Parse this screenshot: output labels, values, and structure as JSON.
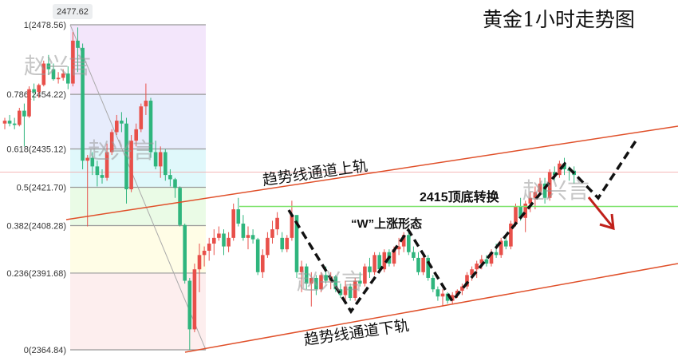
{
  "title": "黄金1小时走势图",
  "chart_data": {
    "type": "candlestick",
    "up_color": "#e8504a",
    "down_color": "#2fb57d",
    "ylim": [
      2364.84,
      2478.56
    ],
    "tooltip_price": "2477.62",
    "fib_levels": [
      {
        "label": "1(2478.56)",
        "price": 2478.56,
        "band": "#f3e6fb"
      },
      {
        "label": "0.786(2454.22)",
        "price": 2454.22,
        "band": "#e7ecfc"
      },
      {
        "label": "0.618(2435.12)",
        "price": 2435.12,
        "band": "#e0f8fb"
      },
      {
        "label": "0.5(2421.70)",
        "price": 2421.7,
        "band": "#eafbe6"
      },
      {
        "label": "0.382(2408.28)",
        "price": 2408.28,
        "band": "#fffde6"
      },
      {
        "label": "0.236(2391.68)",
        "price": 2391.68,
        "band": "#fdeeee"
      },
      {
        "label": "0(2364.84)",
        "price": 2364.84,
        "band": null
      }
    ],
    "support_resistance": {
      "label": "2415顶底转换",
      "price": 2415,
      "color": "#7de36a"
    },
    "current_price_line": 2427,
    "channel_upper_label": "趋势线通道上轨",
    "channel_lower_label": "趋势线通道下轨",
    "pattern_label": "“W”上涨形态",
    "watermark": "赵兴言",
    "candles": [
      [
        2444,
        2446,
        2442,
        2445
      ],
      [
        2445,
        2447,
        2443,
        2444
      ],
      [
        2444,
        2446,
        2442,
        2443.5
      ],
      [
        2443.5,
        2449.5,
        2443,
        2448.5
      ],
      [
        2448.5,
        2451,
        2436,
        2446.5
      ],
      [
        2446.5,
        2457,
        2446,
        2456
      ],
      [
        2456,
        2458,
        2452,
        2455
      ],
      [
        2455,
        2458,
        2453,
        2457.5
      ],
      [
        2457.5,
        2466,
        2457,
        2465
      ],
      [
        2465,
        2468,
        2461,
        2463
      ],
      [
        2463,
        2465,
        2459,
        2459.5
      ],
      [
        2459.5,
        2462,
        2458,
        2460
      ],
      [
        2460,
        2463,
        2459,
        2461.5
      ],
      [
        2461.5,
        2464,
        2456,
        2458
      ],
      [
        2458,
        2476,
        2457,
        2473
      ],
      [
        2473,
        2477.6,
        2462,
        2470.5
      ],
      [
        2470.5,
        2472,
        2428,
        2431
      ],
      [
        2431,
        2433,
        2408,
        2432
      ],
      [
        2432,
        2434,
        2426,
        2429
      ],
      [
        2429,
        2431,
        2422,
        2426
      ],
      [
        2426,
        2428,
        2423,
        2425
      ],
      [
        2425,
        2437,
        2424,
        2434
      ],
      [
        2434,
        2442,
        2433,
        2441
      ],
      [
        2441,
        2447,
        2440,
        2445
      ],
      [
        2445,
        2448,
        2441,
        2444
      ],
      [
        2444,
        2446,
        2416,
        2421
      ],
      [
        2421,
        2440,
        2420,
        2438
      ],
      [
        2438,
        2444,
        2436,
        2442
      ],
      [
        2442,
        2451,
        2441,
        2450
      ],
      [
        2450,
        2458,
        2447,
        2452
      ],
      [
        2452,
        2453,
        2432,
        2434
      ],
      [
        2434,
        2438,
        2428,
        2429
      ],
      [
        2429,
        2436,
        2425,
        2434
      ],
      [
        2434,
        2435,
        2424,
        2426
      ],
      [
        2426,
        2428,
        2422,
        2424.5
      ],
      [
        2424.5,
        2425,
        2418,
        2421.5
      ],
      [
        2421.5,
        2422,
        2408,
        2408.5
      ],
      [
        2408.5,
        2409,
        2388,
        2389
      ],
      [
        2389,
        2390,
        2364.84,
        2372
      ],
      [
        2372,
        2395,
        2371,
        2393
      ],
      [
        2393,
        2402,
        2385,
        2398
      ],
      [
        2398,
        2401,
        2394,
        2399.5
      ],
      [
        2399.5,
        2404,
        2396,
        2402
      ],
      [
        2402,
        2407,
        2398,
        2404
      ],
      [
        2404,
        2408,
        2403,
        2405.5
      ],
      [
        2405.5,
        2407,
        2398,
        2401
      ],
      [
        2401,
        2406,
        2399,
        2404
      ],
      [
        2404,
        2416,
        2403,
        2414
      ],
      [
        2414,
        2418,
        2408,
        2409
      ],
      [
        2409,
        2412,
        2403,
        2404
      ],
      [
        2404,
        2408,
        2400,
        2405
      ],
      [
        2405,
        2407,
        2402,
        2403.5
      ],
      [
        2403.5,
        2404,
        2391,
        2392
      ],
      [
        2392,
        2400,
        2390,
        2398
      ],
      [
        2398,
        2406,
        2397,
        2404
      ],
      [
        2404,
        2410,
        2402,
        2407
      ],
      [
        2407,
        2413,
        2405,
        2411
      ],
      [
        2404,
        2406,
        2399,
        2400
      ],
      [
        2400,
        2405,
        2399,
        2404
      ],
      [
        2404,
        2417,
        2403,
        2412
      ],
      [
        2412,
        2412,
        2390,
        2392
      ],
      [
        2392,
        2396,
        2385,
        2394
      ],
      [
        2394,
        2395,
        2386,
        2388
      ],
      [
        2388,
        2392,
        2380,
        2390
      ],
      [
        2390,
        2391,
        2384,
        2386
      ],
      [
        2386,
        2392,
        2385,
        2391
      ],
      [
        2391,
        2394,
        2388,
        2389
      ],
      [
        2389,
        2392,
        2386,
        2390.5
      ],
      [
        2390.5,
        2391,
        2385,
        2386
      ],
      [
        2386,
        2388,
        2383,
        2384
      ],
      [
        2384,
        2389,
        2381,
        2387
      ],
      [
        2387,
        2388,
        2382,
        2383
      ],
      [
        2383,
        2390,
        2382,
        2389
      ],
      [
        2389,
        2392,
        2387,
        2388
      ],
      [
        2388,
        2395,
        2387,
        2394
      ],
      [
        2394,
        2397,
        2390,
        2392
      ],
      [
        2392,
        2399,
        2391,
        2398
      ],
      [
        2398,
        2399,
        2392,
        2393
      ],
      [
        2393,
        2400,
        2392,
        2399
      ],
      [
        2399,
        2400,
        2394,
        2395
      ],
      [
        2395,
        2401,
        2394,
        2400
      ],
      [
        2400,
        2404,
        2398,
        2401
      ],
      [
        2401,
        2406,
        2399,
        2405
      ],
      [
        2405,
        2407,
        2398,
        2399
      ],
      [
        2399,
        2401,
        2396,
        2397
      ],
      [
        2397,
        2399,
        2391,
        2392
      ],
      [
        2392,
        2398,
        2391,
        2397
      ],
      [
        2397,
        2398,
        2389,
        2390
      ],
      [
        2390,
        2391,
        2385,
        2386
      ],
      [
        2386,
        2387,
        2382,
        2383.5
      ],
      [
        2383.5,
        2386,
        2380,
        2384.5
      ],
      [
        2384.5,
        2385,
        2381,
        2382
      ],
      [
        2382,
        2385,
        2381,
        2384
      ],
      [
        2384,
        2386,
        2383,
        2385.5
      ],
      [
        2385.5,
        2388,
        2384,
        2387
      ],
      [
        2387,
        2392,
        2386,
        2391
      ],
      [
        2391,
        2394,
        2389,
        2393
      ],
      [
        2393,
        2396,
        2390,
        2395
      ],
      [
        2395,
        2398,
        2393,
        2396.5
      ],
      [
        2396.5,
        2398,
        2394,
        2395
      ],
      [
        2395,
        2400,
        2394,
        2399
      ],
      [
        2399,
        2402,
        2397,
        2398
      ],
      [
        2398,
        2404,
        2397,
        2403
      ],
      [
        2403,
        2405,
        2400,
        2401
      ],
      [
        2401,
        2410,
        2400,
        2409
      ],
      [
        2409,
        2416,
        2408,
        2415
      ],
      [
        2415,
        2418,
        2410,
        2411
      ],
      [
        2411,
        2417,
        2406,
        2416
      ],
      [
        2416,
        2420,
        2413,
        2418
      ],
      [
        2418,
        2422,
        2414,
        2420
      ],
      [
        2420,
        2425,
        2419,
        2423
      ],
      [
        2423,
        2425,
        2416,
        2418
      ],
      [
        2418,
        2428,
        2417,
        2427
      ],
      [
        2427,
        2429,
        2424,
        2426
      ],
      [
        2426,
        2431,
        2425,
        2430
      ],
      [
        2430,
        2432,
        2426,
        2428
      ],
      [
        2428,
        2429,
        2424,
        2427.5
      ],
      [
        2427.5,
        2429,
        2423,
        2426
      ]
    ]
  }
}
